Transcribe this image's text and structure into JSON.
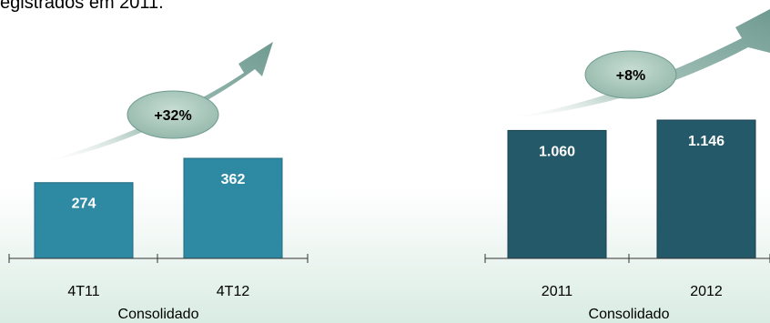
{
  "header": {
    "text": "egistrados em 2011."
  },
  "chart_data": [
    {
      "type": "bar",
      "categories": [
        "4T11",
        "4T12"
      ],
      "values": [
        274,
        362
      ],
      "value_labels": [
        "274",
        "362"
      ],
      "xlabel": "Consolidado",
      "growth_label": "+32%",
      "colors": {
        "bar": "#2e8aa3",
        "bar_edge": "#206a80"
      }
    },
    {
      "type": "bar",
      "categories": [
        "2011",
        "2012"
      ],
      "values": [
        1060,
        1146
      ],
      "value_labels": [
        "1.060",
        "1.146"
      ],
      "xlabel": "Consolidado",
      "growth_label": "+8%",
      "colors": {
        "bar": "#24596a",
        "bar_edge": "#173f4c"
      }
    }
  ],
  "colors": {
    "arrow": "#7fa89e",
    "badge_fill": "#a8c7bb",
    "axis": "#333333"
  }
}
